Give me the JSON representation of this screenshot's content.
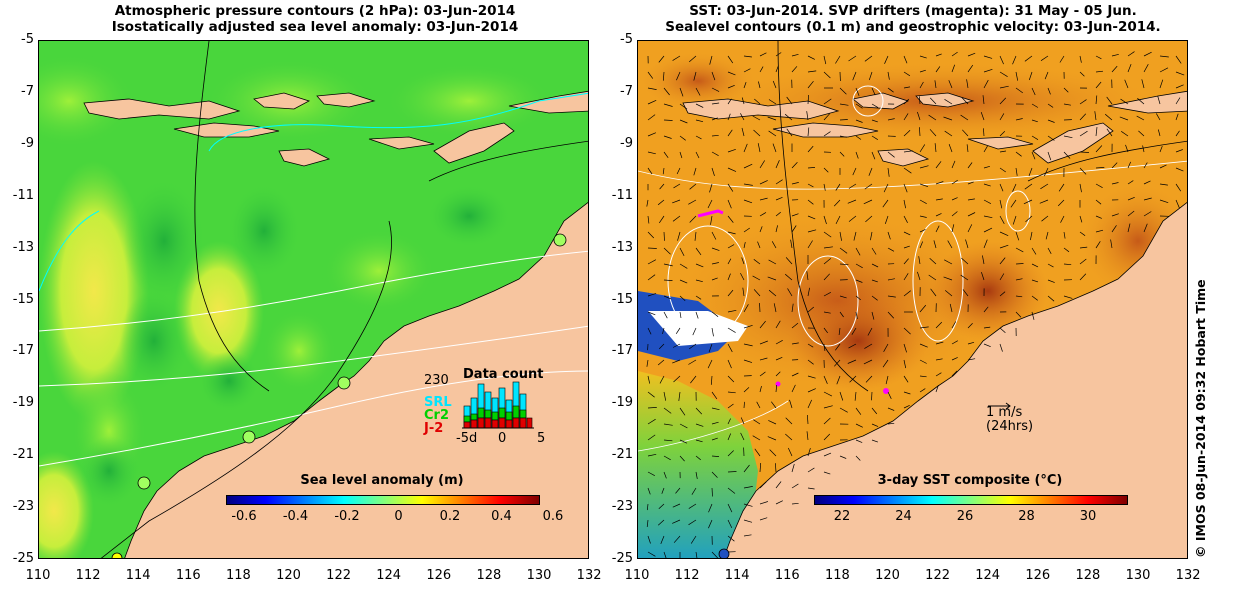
{
  "left_panel": {
    "title_line1": "Atmospheric pressure contours (2 hPa): 03-Jun-2014",
    "title_line2": "Isostatically adjusted sea level anomaly: 03-Jun-2014",
    "colorbar": {
      "title": "Sea level anomaly (m)",
      "ticks": [
        "-0.6",
        "-0.4",
        "-0.2",
        "0",
        "0.2",
        "0.4",
        "0.6"
      ],
      "colors": [
        "#00007f",
        "#0000ff",
        "#0080ff",
        "#00ffff",
        "#80ff80",
        "#ffff00",
        "#ff8000",
        "#ff0000",
        "#7f0000"
      ]
    },
    "data_count": {
      "title": "Data count",
      "max_label": "230",
      "series": [
        "SRL",
        "Cr2",
        "J-2"
      ],
      "series_colors": [
        "#00e5ff",
        "#00d000",
        "#e00000"
      ],
      "x_ticks": [
        "-5d",
        "0",
        "5"
      ]
    }
  },
  "right_panel": {
    "title_line1": "SST: 03-Jun-2014. SVP drifters (magenta): 31 May - 05 Jun.",
    "title_line2": "Sealevel contours (0.1 m) and geostrophic velocity: 03-Jun-2014.",
    "colorbar": {
      "title": "3-day SST composite (°C)",
      "ticks": [
        "22",
        "24",
        "26",
        "28",
        "30"
      ]
    },
    "scale_label_1": "1 m/s",
    "scale_label_2": "(24hrs)"
  },
  "axes": {
    "y_ticks": [
      "-5",
      "-7",
      "-9",
      "-11",
      "-13",
      "-15",
      "-17",
      "-19",
      "-21",
      "-23",
      "-25"
    ],
    "x_ticks": [
      "110",
      "112",
      "114",
      "116",
      "118",
      "120",
      "122",
      "124",
      "126",
      "128",
      "130",
      "132"
    ]
  },
  "credit": "© IMOS 08-Jun-2014 09:32 Hobart Time",
  "colors": {
    "land": "#f7c59f",
    "sla_green": "#3fd23f",
    "sst_orange": "#f0a020"
  }
}
